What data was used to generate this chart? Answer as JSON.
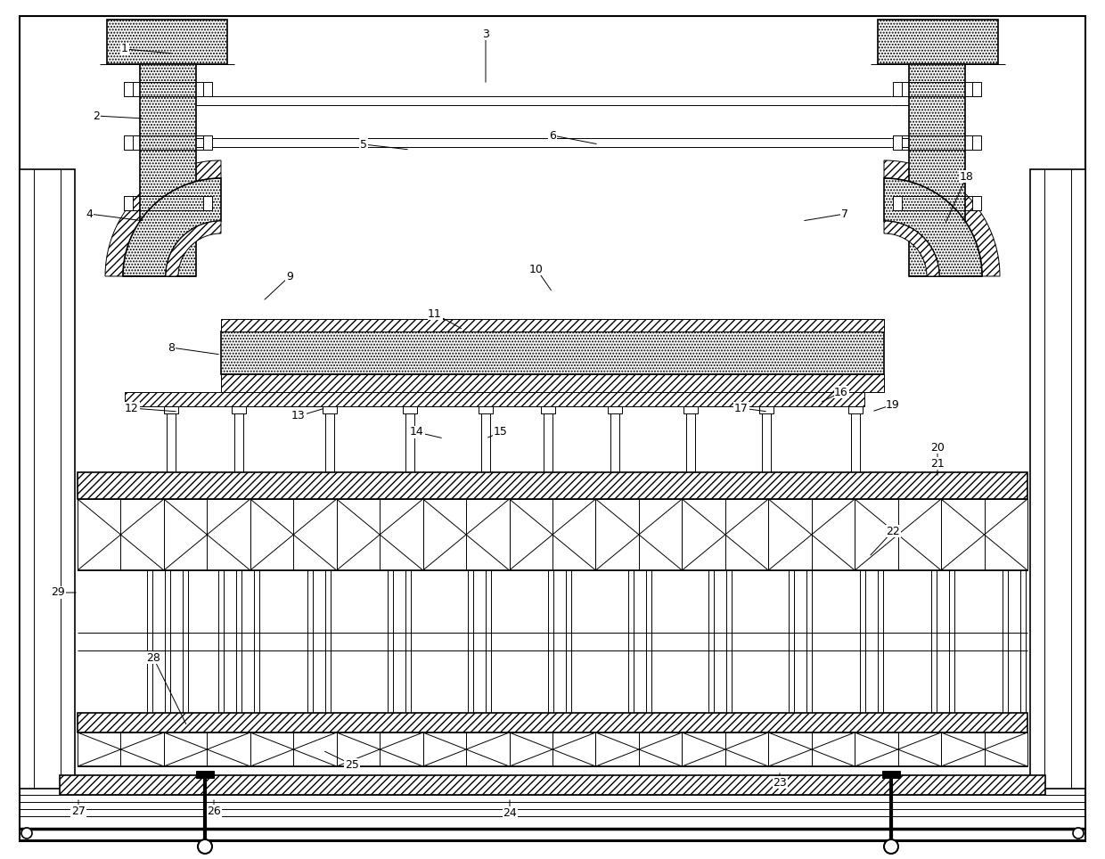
{
  "bg_color": "#ffffff",
  "lw_main": 1.2,
  "lw_thin": 0.7,
  "lw_thick": 1.8,
  "fig_width": 12.4,
  "fig_height": 9.64,
  "labels": {
    "1": [
      140,
      55,
      195,
      60
    ],
    "2": [
      108,
      130,
      162,
      133
    ],
    "3": [
      545,
      38,
      545,
      95
    ],
    "4": [
      100,
      240,
      162,
      248
    ],
    "5": [
      408,
      162,
      460,
      168
    ],
    "6": [
      620,
      152,
      672,
      162
    ],
    "7": [
      948,
      240,
      900,
      248
    ],
    "8": [
      192,
      390,
      248,
      398
    ],
    "9": [
      325,
      310,
      295,
      338
    ],
    "10": [
      602,
      302,
      620,
      328
    ],
    "11": [
      488,
      352,
      520,
      370
    ],
    "12": [
      148,
      458,
      200,
      462
    ],
    "13": [
      335,
      467,
      365,
      458
    ],
    "14": [
      468,
      485,
      498,
      492
    ],
    "15": [
      562,
      485,
      545,
      492
    ],
    "16": [
      944,
      440,
      920,
      452
    ],
    "17": [
      832,
      458,
      862,
      462
    ],
    "18": [
      1085,
      198,
      1060,
      252
    ],
    "19": [
      1002,
      454,
      978,
      462
    ],
    "20": [
      1052,
      502,
      1052,
      518
    ],
    "21": [
      1052,
      520,
      1052,
      536
    ],
    "22": [
      1002,
      596,
      975,
      625
    ],
    "23": [
      875,
      878,
      875,
      865
    ],
    "24": [
      572,
      912,
      572,
      895
    ],
    "25": [
      395,
      858,
      362,
      842
    ],
    "26": [
      240,
      910,
      240,
      895
    ],
    "27": [
      88,
      910,
      88,
      895
    ],
    "28": [
      172,
      738,
      210,
      815
    ],
    "29": [
      65,
      665,
      88,
      665
    ]
  }
}
